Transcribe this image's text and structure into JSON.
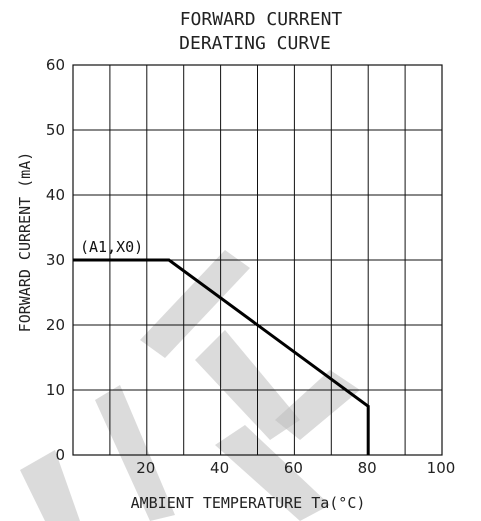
{
  "chart_data": {
    "type": "line",
    "title_lines": [
      "FORWARD CURRENT",
      "DERATING CURVE"
    ],
    "xlabel": "AMBIENT TEMPERATURE Ta(°C)",
    "ylabel": "FORWARD CURRENT (mA)",
    "xlim": [
      0,
      100
    ],
    "ylim": [
      0,
      60
    ],
    "x_grid": [
      0,
      10,
      20,
      30,
      40,
      50,
      60,
      70,
      80,
      90,
      100
    ],
    "y_grid": [
      0,
      10,
      20,
      30,
      40,
      50,
      60
    ],
    "x_ticks": [
      20,
      40,
      60,
      80,
      100
    ],
    "y_ticks": [
      0,
      10,
      20,
      30,
      40,
      50,
      60
    ],
    "grid": true,
    "annotation": "(A1,X0)",
    "series": [
      {
        "x": [
          0,
          26,
          80,
          80
        ],
        "y": [
          30,
          30,
          7.5,
          0
        ]
      }
    ]
  }
}
